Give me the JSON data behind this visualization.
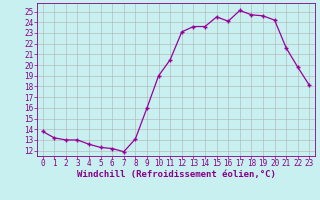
{
  "x": [
    0,
    1,
    2,
    3,
    4,
    5,
    6,
    7,
    8,
    9,
    10,
    11,
    12,
    13,
    14,
    15,
    16,
    17,
    18,
    19,
    20,
    21,
    22,
    23
  ],
  "y": [
    13.8,
    13.2,
    13.0,
    13.0,
    12.6,
    12.3,
    12.2,
    11.9,
    13.1,
    16.0,
    19.0,
    20.5,
    23.1,
    23.6,
    23.6,
    24.5,
    24.1,
    25.1,
    24.7,
    24.6,
    24.2,
    21.6,
    19.8,
    18.1
  ],
  "line_color": "#990099",
  "marker": "+",
  "marker_size": 3.5,
  "bg_color": "#c8f0f0",
  "grid_color": "#b0b0b0",
  "xlabel": "Windchill (Refroidissement éolien,°C)",
  "yticks": [
    12,
    13,
    14,
    15,
    16,
    17,
    18,
    19,
    20,
    21,
    22,
    23,
    24,
    25
  ],
  "ylim": [
    11.5,
    25.8
  ],
  "xlim": [
    -0.5,
    23.5
  ],
  "xtick_labels": [
    "0",
    "1",
    "2",
    "3",
    "4",
    "5",
    "6",
    "7",
    "8",
    "9",
    "10",
    "11",
    "12",
    "13",
    "14",
    "15",
    "16",
    "17",
    "18",
    "19",
    "20",
    "21",
    "22",
    "23"
  ],
  "tick_color": "#880088",
  "label_color": "#880088",
  "spine_color": "#880088",
  "font_size_tick": 5.5,
  "font_size_label": 6.5,
  "line_width": 0.9,
  "marker_color": "#990099"
}
